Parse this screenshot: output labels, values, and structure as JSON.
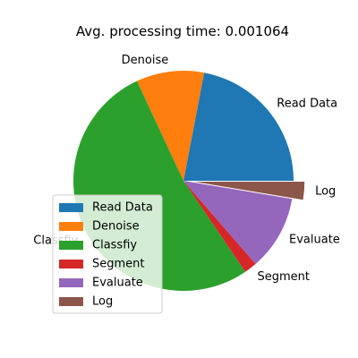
{
  "chart_data": {
    "type": "pie",
    "title": "Avg. processing time: 0.001064",
    "start_angle_deg": 0,
    "counterclock": true,
    "explode_last": 0.1,
    "legend_position": "lower-left",
    "slices": [
      {
        "label": "Read Data",
        "value": 0.000234,
        "color": "#1f77b4"
      },
      {
        "label": "Denoise",
        "value": 0.000106,
        "color": "#ff7f0e"
      },
      {
        "label": "Classfiy",
        "value": 0.000559,
        "color": "#2ca02c"
      },
      {
        "label": "Segment",
        "value": 2e-05,
        "color": "#d62728"
      },
      {
        "label": "Evaluate",
        "value": 0.000117,
        "color": "#9467bd"
      },
      {
        "label": "Log",
        "value": 2.8e-05,
        "color": "#8c564b"
      }
    ]
  }
}
